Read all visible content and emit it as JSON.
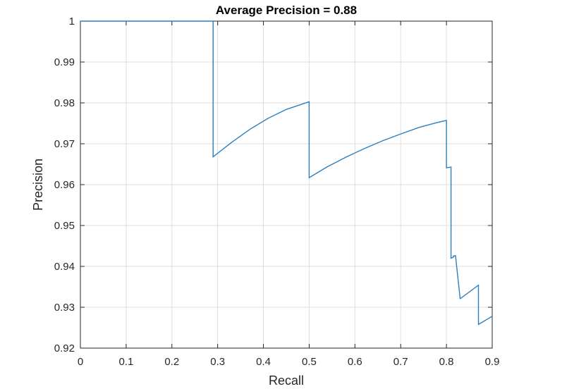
{
  "chart_data": {
    "type": "line",
    "title": "Average Precision = 0.88",
    "xlabel": "Recall",
    "ylabel": "Precision",
    "xlim": [
      0,
      0.9
    ],
    "ylim": [
      0.92,
      1.0
    ],
    "xticks": [
      "0",
      "0.1",
      "0.2",
      "0.3",
      "0.4",
      "0.5",
      "0.6",
      "0.7",
      "0.8",
      "0.9"
    ],
    "yticks": [
      "0.92",
      "0.93",
      "0.94",
      "0.95",
      "0.96",
      "0.97",
      "0.98",
      "0.99",
      "1"
    ],
    "grid": true,
    "line_color": "#2d7fbf",
    "series": [
      {
        "x": [
          0,
          0.29,
          0.29,
          0.33,
          0.37,
          0.41,
          0.45,
          0.5,
          0.5,
          0.54,
          0.58,
          0.62,
          0.66,
          0.7,
          0.74,
          0.78,
          0.8,
          0.8,
          0.81,
          0.81,
          0.815,
          0.815,
          0.82,
          0.82,
          0.83,
          0.83,
          0.87,
          0.87,
          0.9
        ],
        "y": [
          1.0,
          1.0,
          0.9668,
          0.9703,
          0.9735,
          0.9762,
          0.9784,
          0.9803,
          0.9617,
          0.9644,
          0.9667,
          0.9688,
          0.9707,
          0.9724,
          0.974,
          0.9752,
          0.9757,
          0.9641,
          0.9643,
          0.942,
          0.9422,
          0.9425,
          0.9426,
          0.9424,
          0.932,
          0.9321,
          0.9354,
          0.9258,
          0.9278
        ]
      }
    ]
  }
}
